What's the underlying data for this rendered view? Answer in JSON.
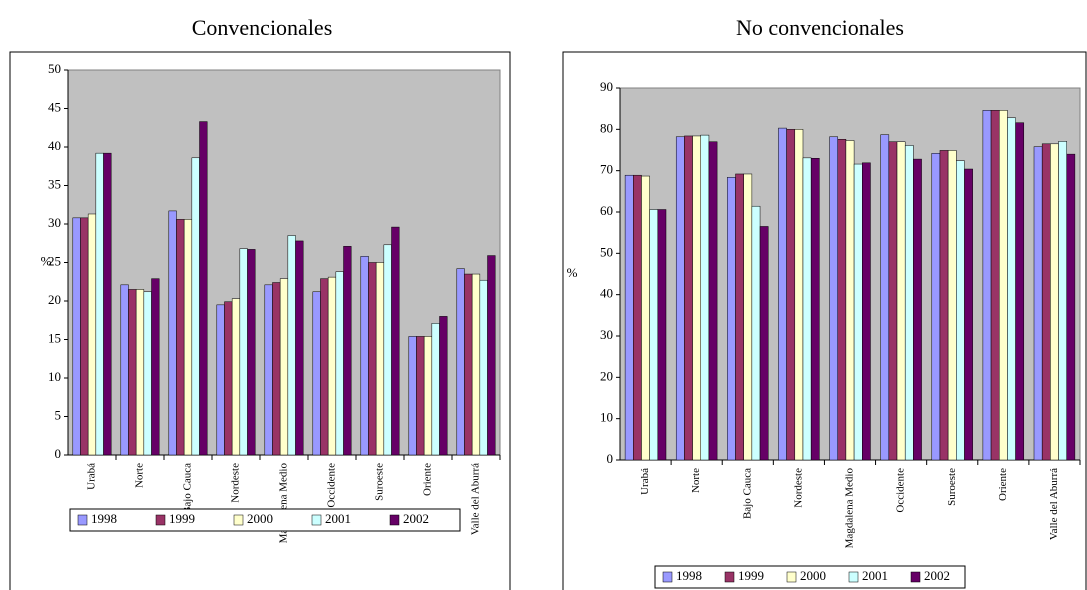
{
  "chart_data": [
    {
      "type": "bar",
      "title": "Convencionales",
      "y_label": "%",
      "categories": [
        "Urabá",
        "Norte",
        "Bajo Cauca",
        "Nordeste",
        "Magdalena Medio",
        "Occidente",
        "Suroeste",
        "Oriente",
        "Valle del Aburrá"
      ],
      "series": [
        {
          "name": "1998",
          "color": "#9999ff",
          "values": [
            30.8,
            22.1,
            31.7,
            19.5,
            22.1,
            21.2,
            25.8,
            15.4,
            24.2
          ]
        },
        {
          "name": "1999",
          "color": "#993366",
          "values": [
            30.8,
            21.5,
            30.6,
            19.9,
            22.4,
            22.9,
            25.0,
            15.4,
            23.5
          ]
        },
        {
          "name": "2000",
          "color": "#ffffcc",
          "values": [
            31.3,
            21.5,
            30.6,
            20.3,
            22.9,
            23.1,
            25.0,
            15.4,
            23.5
          ]
        },
        {
          "name": "2001",
          "color": "#ccffff",
          "values": [
            39.2,
            21.2,
            38.6,
            26.8,
            28.5,
            23.8,
            27.3,
            17.1,
            22.7
          ]
        },
        {
          "name": "2002",
          "color": "#660066",
          "values": [
            39.2,
            22.9,
            43.3,
            26.7,
            27.8,
            27.1,
            29.6,
            18.0,
            25.9
          ]
        }
      ],
      "ylim": [
        0,
        50
      ],
      "yticks": [
        0,
        5,
        10,
        15,
        20,
        25,
        30,
        35,
        40,
        45,
        50
      ],
      "grid": false,
      "legend": "bottom"
    },
    {
      "type": "bar",
      "title": "No convencionales",
      "y_label": "%",
      "categories": [
        "Urabá",
        "Norte",
        "Bajo Cauca",
        "Nordeste",
        "Magdalena Medio",
        "Occidente",
        "Suroeste",
        "Oriente",
        "Valle del Aburrá"
      ],
      "series": [
        {
          "name": "1998",
          "color": "#9999ff",
          "values": [
            68.9,
            78.2,
            68.4,
            80.3,
            78.2,
            78.7,
            74.2,
            84.6,
            75.8
          ]
        },
        {
          "name": "1999",
          "color": "#993366",
          "values": [
            68.9,
            78.4,
            69.2,
            80.0,
            77.6,
            77.0,
            74.9,
            84.6,
            76.5
          ]
        },
        {
          "name": "2000",
          "color": "#ffffcc",
          "values": [
            68.7,
            78.4,
            69.2,
            80.0,
            77.3,
            77.0,
            74.9,
            84.6,
            76.5
          ]
        },
        {
          "name": "2001",
          "color": "#ccffff",
          "values": [
            60.6,
            78.6,
            61.4,
            73.1,
            71.6,
            76.1,
            72.4,
            82.8,
            77.1
          ]
        },
        {
          "name": "2002",
          "color": "#660066",
          "values": [
            60.6,
            77.0,
            56.5,
            73.0,
            71.9,
            72.8,
            70.4,
            81.6,
            74.0
          ]
        }
      ],
      "ylim": [
        0,
        90
      ],
      "yticks": [
        0,
        10,
        20,
        30,
        40,
        50,
        60,
        70,
        80,
        90
      ],
      "grid": false,
      "legend": "bottom"
    }
  ]
}
